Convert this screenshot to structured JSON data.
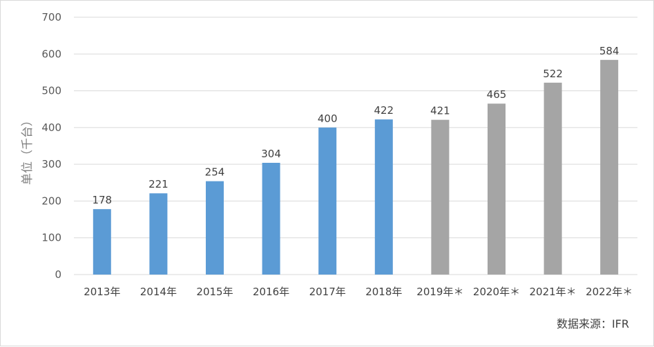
{
  "chart_data": {
    "type": "bar",
    "title": "",
    "xlabel": "",
    "ylabel": "单位（千台）",
    "ylim": [
      0,
      700
    ],
    "yticks": [
      0,
      100,
      200,
      300,
      400,
      500,
      600,
      700
    ],
    "grid": true,
    "legend": "none",
    "categories": [
      "2013年",
      "2014年",
      "2015年",
      "2016年",
      "2017年",
      "2018年",
      "2019年＊",
      "2020年＊",
      "2021年＊",
      "2022年＊"
    ],
    "values": [
      178,
      221,
      254,
      304,
      400,
      422,
      421,
      465,
      522,
      584
    ],
    "bar_colors": [
      "#5b9bd5",
      "#5b9bd5",
      "#5b9bd5",
      "#5b9bd5",
      "#5b9bd5",
      "#5b9bd5",
      "#a5a5a5",
      "#a5a5a5",
      "#a5a5a5",
      "#a5a5a5"
    ],
    "source_note": "数据来源：IFR"
  },
  "colors": {
    "actual": "#5b9bd5",
    "forecast": "#a5a5a5",
    "grid": "#d9d9d9"
  }
}
